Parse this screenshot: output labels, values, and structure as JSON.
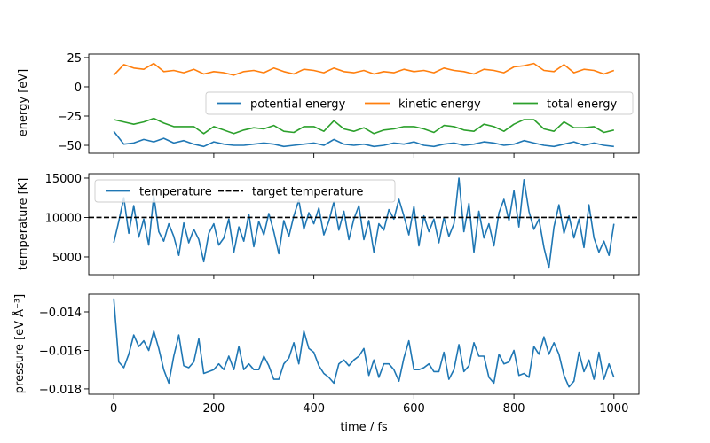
{
  "chart_data": [
    {
      "type": "line",
      "panel": "energy",
      "ylabel": "energy [eV]",
      "xlabel": "",
      "xlim": [
        -50,
        1050
      ],
      "ylim": [
        -56.8,
        28
      ],
      "xticks": [
        0,
        200,
        400,
        600,
        800,
        1000
      ],
      "yticks": [
        25,
        0,
        -25,
        -50
      ],
      "ytick_labels": [
        "25",
        "0",
        "−25",
        "−50"
      ],
      "legend": {
        "placement": "center-right",
        "columns": 3
      },
      "x": [
        0,
        20,
        40,
        60,
        80,
        100,
        120,
        140,
        160,
        180,
        200,
        220,
        240,
        260,
        280,
        300,
        320,
        340,
        360,
        380,
        400,
        420,
        440,
        460,
        480,
        500,
        520,
        540,
        560,
        580,
        600,
        620,
        640,
        660,
        680,
        700,
        720,
        740,
        760,
        780,
        800,
        820,
        840,
        860,
        880,
        900,
        920,
        940,
        960,
        980,
        1000
      ],
      "series": [
        {
          "name": "potential energy",
          "color": "#1f77b4",
          "values": [
            -38,
            -49,
            -48,
            -45,
            -47,
            -44,
            -48,
            -46,
            -49,
            -51,
            -47,
            -49,
            -50,
            -50,
            -49,
            -48,
            -49,
            -51,
            -50,
            -49,
            -48,
            -50,
            -45,
            -49,
            -50,
            -49,
            -51,
            -50,
            -48,
            -49,
            -47,
            -50,
            -51,
            -49,
            -48,
            -50,
            -49,
            -47,
            -48,
            -50,
            -49,
            -46,
            -48,
            -50,
            -51,
            -49,
            -47,
            -50,
            -48,
            -50,
            -51
          ]
        },
        {
          "name": "kinetic energy",
          "color": "#ff7f0e",
          "values": [
            10,
            19,
            16,
            15,
            20,
            13,
            14,
            12,
            15,
            11,
            13,
            12,
            10,
            13,
            14,
            12,
            16,
            13,
            11,
            15,
            14,
            12,
            16,
            13,
            12,
            14,
            11,
            13,
            12,
            15,
            13,
            14,
            12,
            16,
            14,
            13,
            11,
            15,
            14,
            12,
            17,
            18,
            20,
            14,
            13,
            19,
            12,
            15,
            14,
            11,
            14
          ]
        },
        {
          "name": "total energy",
          "color": "#2ca02c",
          "values": [
            -28,
            -30,
            -32,
            -30,
            -27,
            -31,
            -34,
            -34,
            -34,
            -40,
            -34,
            -37,
            -40,
            -37,
            -35,
            -36,
            -33,
            -38,
            -39,
            -34,
            -34,
            -38,
            -29,
            -36,
            -38,
            -35,
            -40,
            -37,
            -36,
            -34,
            -34,
            -36,
            -39,
            -33,
            -34,
            -37,
            -38,
            -32,
            -34,
            -38,
            -32,
            -28,
            -28,
            -36,
            -38,
            -30,
            -35,
            -35,
            -34,
            -39,
            -37
          ]
        }
      ]
    },
    {
      "type": "line",
      "panel": "temperature",
      "ylabel": "temperature [K]",
      "xlabel": "",
      "xlim": [
        -50,
        1050
      ],
      "ylim": [
        2750,
        15560
      ],
      "xticks": [
        0,
        200,
        400,
        600,
        800,
        1000
      ],
      "yticks": [
        15000,
        10000,
        5000
      ],
      "ytick_labels": [
        "15000",
        "10000",
        "5000"
      ],
      "legend": {
        "placement": "top-left",
        "columns": 2
      },
      "x": [
        0,
        10,
        20,
        30,
        40,
        50,
        60,
        70,
        80,
        90,
        100,
        110,
        120,
        130,
        140,
        150,
        160,
        170,
        180,
        190,
        200,
        210,
        220,
        230,
        240,
        250,
        260,
        270,
        280,
        290,
        300,
        310,
        320,
        330,
        340,
        350,
        360,
        370,
        380,
        390,
        400,
        410,
        420,
        430,
        440,
        450,
        460,
        470,
        480,
        490,
        500,
        510,
        520,
        530,
        540,
        550,
        560,
        570,
        580,
        590,
        600,
        610,
        620,
        630,
        640,
        650,
        660,
        670,
        680,
        690,
        700,
        710,
        720,
        730,
        740,
        750,
        760,
        770,
        780,
        790,
        800,
        810,
        820,
        830,
        840,
        850,
        860,
        870,
        880,
        890,
        900,
        910,
        920,
        930,
        940,
        950,
        960,
        970,
        980,
        990,
        1000
      ],
      "series": [
        {
          "name": "temperature",
          "color": "#1f77b4",
          "style": "solid",
          "values": [
            6800,
            9500,
            12500,
            8000,
            11500,
            7500,
            9800,
            6500,
            12800,
            8200,
            7000,
            9200,
            7600,
            5200,
            9300,
            6800,
            8500,
            7200,
            4400,
            8000,
            9200,
            6500,
            7400,
            9800,
            5600,
            8800,
            7000,
            10400,
            6300,
            9500,
            7800,
            10500,
            8200,
            5400,
            9600,
            7600,
            10200,
            12200,
            8500,
            10600,
            9200,
            11200,
            7800,
            9500,
            12000,
            8400,
            10800,
            7200,
            9800,
            11500,
            7200,
            9600,
            5600,
            9200,
            8400,
            11000,
            9800,
            12300,
            10200,
            7800,
            11400,
            6400,
            10200,
            8200,
            9800,
            6800,
            10000,
            7600,
            9200,
            15000,
            8200,
            11800,
            5600,
            10800,
            7400,
            9200,
            6400,
            10600,
            12300,
            9600,
            13400,
            8800,
            14800,
            10800,
            8500,
            9800,
            6200,
            3600,
            8800,
            11600,
            8000,
            10200,
            7400,
            9800,
            6200,
            11600,
            7400,
            5600,
            7000,
            5200,
            9200
          ]
        },
        {
          "name": "target temperature",
          "color": "#000000",
          "style": "dashed",
          "constant": 10000
        }
      ]
    },
    {
      "type": "line",
      "panel": "pressure",
      "ylabel": "pressure [eV Å⁻³]",
      "xlabel": "time / fs",
      "xlim": [
        -50,
        1050
      ],
      "ylim": [
        -0.01828,
        -0.01308
      ],
      "xticks": [
        0,
        200,
        400,
        600,
        800,
        1000
      ],
      "xtick_labels": [
        "0",
        "200",
        "400",
        "600",
        "800",
        "1000"
      ],
      "yticks": [
        -0.014,
        -0.016,
        -0.018
      ],
      "ytick_labels": [
        "−0.014",
        "−0.016",
        "−0.018"
      ],
      "x": [
        0,
        10,
        20,
        30,
        40,
        50,
        60,
        70,
        80,
        90,
        100,
        110,
        120,
        130,
        140,
        150,
        160,
        170,
        180,
        190,
        200,
        210,
        220,
        230,
        240,
        250,
        260,
        270,
        280,
        290,
        300,
        310,
        320,
        330,
        340,
        350,
        360,
        370,
        380,
        390,
        400,
        410,
        420,
        430,
        440,
        450,
        460,
        470,
        480,
        490,
        500,
        510,
        520,
        530,
        540,
        550,
        560,
        570,
        580,
        590,
        600,
        610,
        620,
        630,
        640,
        650,
        660,
        670,
        680,
        690,
        700,
        710,
        720,
        730,
        740,
        750,
        760,
        770,
        780,
        790,
        800,
        810,
        820,
        830,
        840,
        850,
        860,
        870,
        880,
        890,
        900,
        910,
        920,
        930,
        940,
        950,
        960,
        970,
        980,
        990,
        1000
      ],
      "series": [
        {
          "name": "pressure",
          "color": "#1f77b4",
          "values": [
            -0.0133,
            -0.0166,
            -0.0169,
            -0.0162,
            -0.0152,
            -0.0158,
            -0.0155,
            -0.016,
            -0.015,
            -0.0159,
            -0.017,
            -0.0177,
            -0.0163,
            -0.0152,
            -0.0168,
            -0.0169,
            -0.0166,
            -0.0154,
            -0.0172,
            -0.0171,
            -0.017,
            -0.0167,
            -0.017,
            -0.0163,
            -0.017,
            -0.0158,
            -0.017,
            -0.0167,
            -0.017,
            -0.017,
            -0.0163,
            -0.0168,
            -0.0175,
            -0.0175,
            -0.0167,
            -0.0164,
            -0.0156,
            -0.0167,
            -0.015,
            -0.0159,
            -0.0161,
            -0.0168,
            -0.0172,
            -0.0174,
            -0.0177,
            -0.0167,
            -0.0165,
            -0.0168,
            -0.0165,
            -0.0163,
            -0.0159,
            -0.0173,
            -0.0165,
            -0.0174,
            -0.0167,
            -0.0167,
            -0.017,
            -0.0176,
            -0.0164,
            -0.0155,
            -0.017,
            -0.017,
            -0.0169,
            -0.0167,
            -0.0171,
            -0.0171,
            -0.0161,
            -0.0175,
            -0.017,
            -0.0157,
            -0.0171,
            -0.0168,
            -0.0156,
            -0.0163,
            -0.0163,
            -0.0174,
            -0.0177,
            -0.0162,
            -0.0167,
            -0.0166,
            -0.016,
            -0.0173,
            -0.0172,
            -0.0174,
            -0.0158,
            -0.0162,
            -0.0153,
            -0.0162,
            -0.0156,
            -0.0162,
            -0.0173,
            -0.0179,
            -0.0176,
            -0.0161,
            -0.0171,
            -0.0165,
            -0.0175,
            -0.0161,
            -0.0175,
            -0.0167,
            -0.0174
          ]
        }
      ]
    }
  ]
}
